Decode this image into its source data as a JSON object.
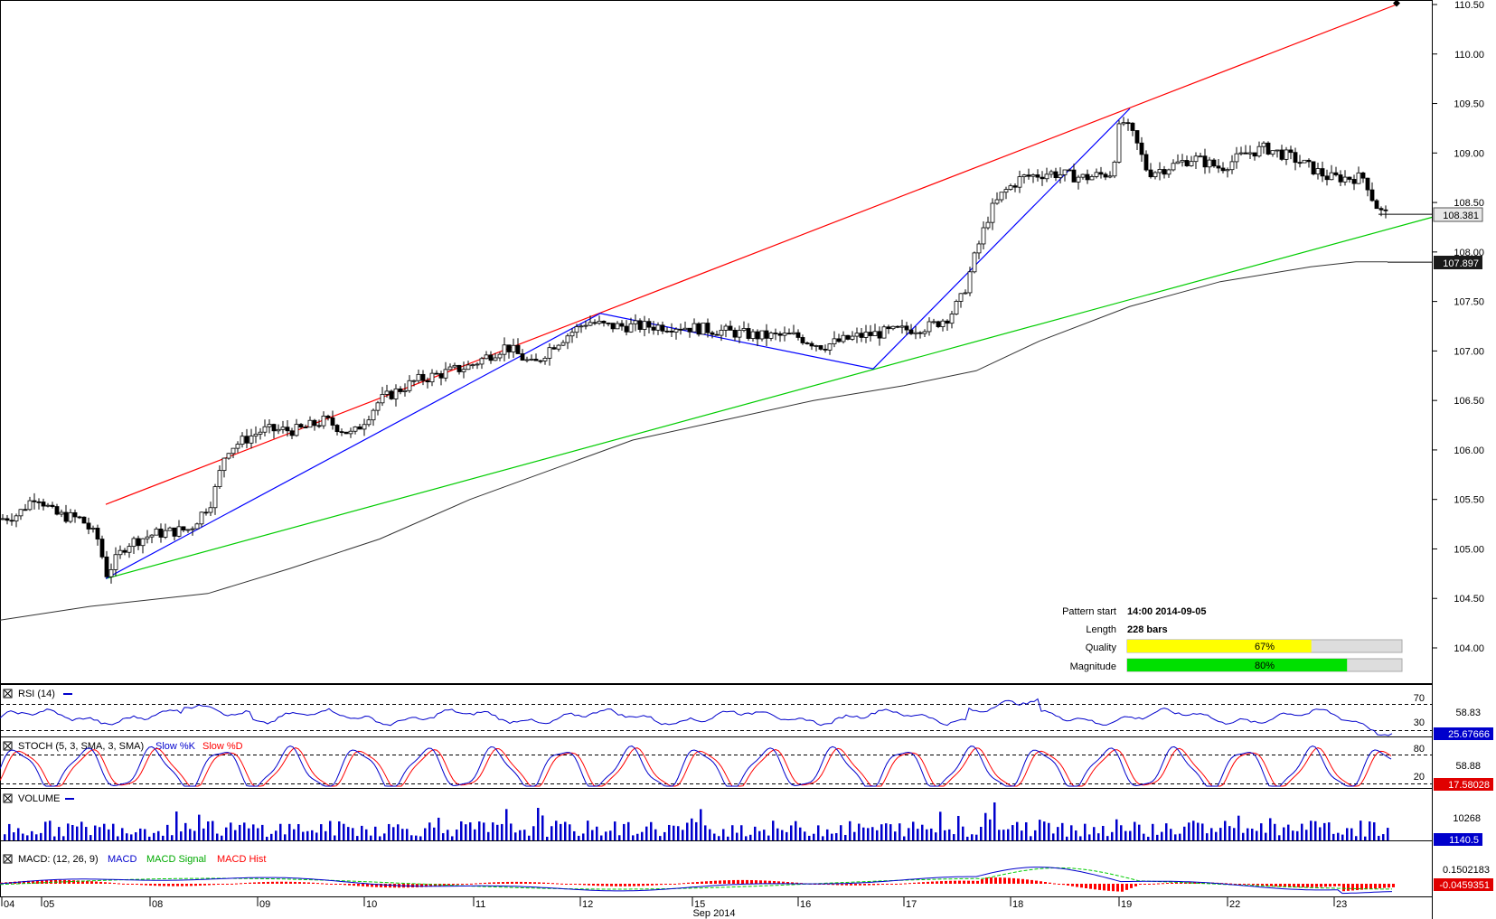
{
  "chart_data": {
    "type": "candlestick",
    "symbol_period": "Sep 2014",
    "price_axis": {
      "ticks": [
        "110.50",
        "110.00",
        "109.50",
        "109.00",
        "108.50",
        "108.00",
        "107.50",
        "107.00",
        "106.50",
        "106.00",
        "105.50",
        "105.00",
        "104.50",
        "104.00"
      ],
      "ylim": [
        103.7,
        110.55
      ],
      "current_price": "108.381",
      "ma_value": "107.897"
    },
    "x_axis": {
      "labels": [
        "04",
        "05",
        "08",
        "09",
        "10",
        "11",
        "12",
        "15",
        "16",
        "17",
        "18",
        "19",
        "22",
        "23"
      ],
      "month_label": "Sep 2014"
    },
    "pattern_info": {
      "start_label": "Pattern start",
      "start_value": "14:00 2014-09-05",
      "length_label": "Length",
      "length_value": "228 bars",
      "quality_label": "Quality",
      "quality_value": "67%",
      "quality_fraction": 0.67,
      "magnitude_label": "Magnitude",
      "magnitude_value": "80%",
      "magnitude_fraction": 0.8
    },
    "pattern_lines": {
      "resistance": [
        [
          0.0,
          104.45
        ],
        [
          1.0,
          110.5
        ]
      ],
      "support": [
        [
          0.0,
          104.7
        ],
        [
          1.0,
          108.35
        ]
      ],
      "zigzag": [
        [
          104.7
        ],
        [
          107.38
        ],
        [
          106.82
        ],
        [
          109.45
        ]
      ]
    },
    "key_points": [
      {
        "label": "start",
        "price": 104.7
      },
      {
        "label": "high1",
        "price": 107.38
      },
      {
        "label": "low1",
        "price": 106.82
      },
      {
        "label": "high2",
        "price": 109.45
      },
      {
        "label": "last",
        "price": 108.381
      }
    ],
    "indicators": {
      "rsi": {
        "title": "RSI (14)",
        "levels": [
          "70",
          "30"
        ],
        "value_label": "58.83",
        "current": "25.67666"
      },
      "stoch": {
        "title_main": "STOCH (5, 3, SMA, 3, SMA)",
        "slow_k": "Slow %K",
        "slow_d": "Slow %D",
        "levels": [
          "80",
          "20"
        ],
        "value_label": "58.88",
        "current": "17.58028"
      },
      "volume": {
        "title": "VOLUME",
        "value_label": "10268",
        "current": "1140.5"
      },
      "macd": {
        "title_main": "MACD: (12, 26, 9)",
        "macd": "MACD",
        "signal": "MACD Signal",
        "hist": "MACD Hist",
        "value_label": "0.1502183",
        "current": "-0.0459351"
      }
    }
  },
  "colors": {
    "up_candle": "#ffffff",
    "down_candle": "#000000",
    "resistance": "#ff0000",
    "support": "#00cc00",
    "zigzag": "#0000ff",
    "ma": "#333333",
    "rsi": "#0000cc",
    "stoch_k": "#0000cc",
    "stoch_d": "#ff0000",
    "volume": "#0000cc",
    "macd": "#0000cc",
    "macd_signal": "#00cc00",
    "macd_hist": "#ff0000",
    "quality_bar": "#ffff00",
    "magnitude_bar": "#00e000",
    "current_price_bg": "#e8e8e8",
    "ma_bg": "#1a1a1a"
  },
  "icons": {
    "panel_close": "close-box-icon"
  }
}
